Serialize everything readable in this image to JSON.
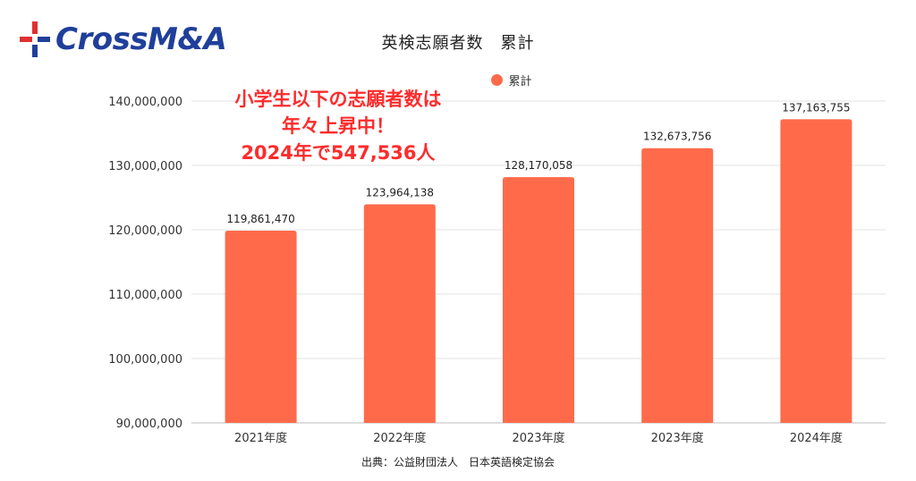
{
  "logo": {
    "text": "CrossM&A"
  },
  "chart_data": {
    "type": "bar",
    "title": "英検志願者数　累計",
    "categories": [
      "2021年度",
      "2022年度",
      "2023年度",
      "2023年度",
      "2024年度"
    ],
    "series": [
      {
        "name": "累計",
        "color": "#ff6b4a",
        "values": [
          119861470,
          123964138,
          128170058,
          132673756,
          137163755
        ]
      }
    ],
    "data_labels": [
      "119,861,470",
      "123,964,138",
      "128,170,058",
      "132,673,756",
      "137,163,755"
    ],
    "y_ticks": [
      90000000,
      100000000,
      110000000,
      120000000,
      130000000,
      140000000
    ],
    "y_tick_labels": [
      "90,000,000",
      "100,000,000",
      "110,000,000",
      "120,000,000",
      "130,000,000",
      "140,000,000"
    ],
    "ylim": [
      90000000,
      140000000
    ],
    "grid": true,
    "legend_position": "top"
  },
  "annotation": {
    "lines": [
      "小学生以下の志願者数は",
      "年々上昇中！",
      "2024年で547,536人"
    ],
    "color": "#ff2b2b"
  },
  "source": "出典：公益財団法人　日本英語検定協会"
}
